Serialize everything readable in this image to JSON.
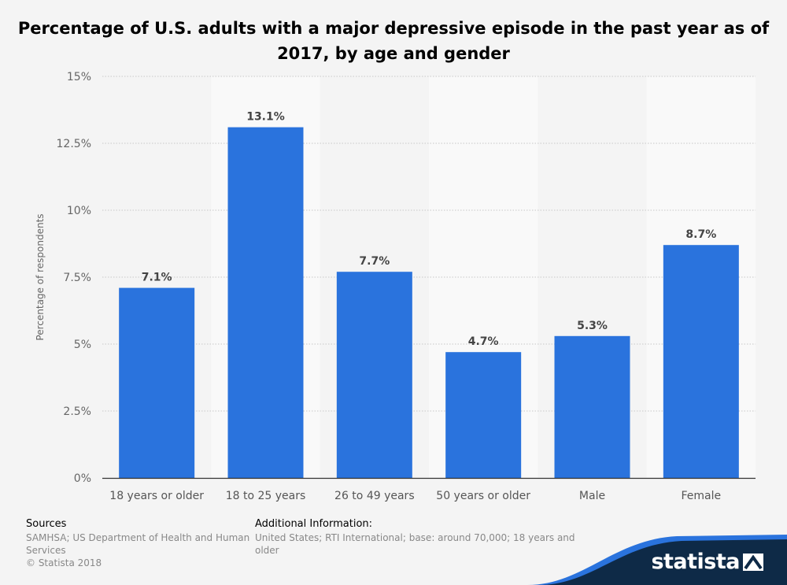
{
  "title": "Percentage of U.S. adults with a major depressive episode in the past year as of 2017, by age and gender",
  "footer": {
    "sources_label": "Sources",
    "sources_text": "SAMHSA; US Department of Health and Human Services",
    "copyright": "© Statista 2018",
    "additional_label": "Additional Information:",
    "additional_text": "United States; RTI International; base: around 70,000; 18 years and older"
  },
  "brand": {
    "name": "statista"
  },
  "colors": {
    "bar": "#2a73dd",
    "background": "#f4f4f4",
    "band": "#f9f9f9",
    "logo_dark": "#0e2a47",
    "logo_accent": "#2a73dd"
  },
  "chart_data": {
    "type": "bar",
    "title": "Percentage of U.S. adults with a major depressive episode in the past year as of 2017, by age and gender",
    "categories": [
      "18 years or older",
      "18 to 25 years",
      "26 to 49 years",
      "50 years or older",
      "Male",
      "Female"
    ],
    "values": [
      7.1,
      13.1,
      7.7,
      4.7,
      5.3,
      8.7
    ],
    "value_labels": [
      "7.1%",
      "13.1%",
      "7.7%",
      "4.7%",
      "5.3%",
      "8.7%"
    ],
    "ylabel": "Percentage of respondents",
    "xlabel": "",
    "ylim": [
      0,
      15
    ],
    "yticks": [
      0,
      2.5,
      5,
      7.5,
      10,
      12.5,
      15
    ],
    "ytick_labels": [
      "0%",
      "2.5%",
      "5%",
      "7.5%",
      "10%",
      "12.5%",
      "15%"
    ],
    "grid": true,
    "legend": "none"
  }
}
